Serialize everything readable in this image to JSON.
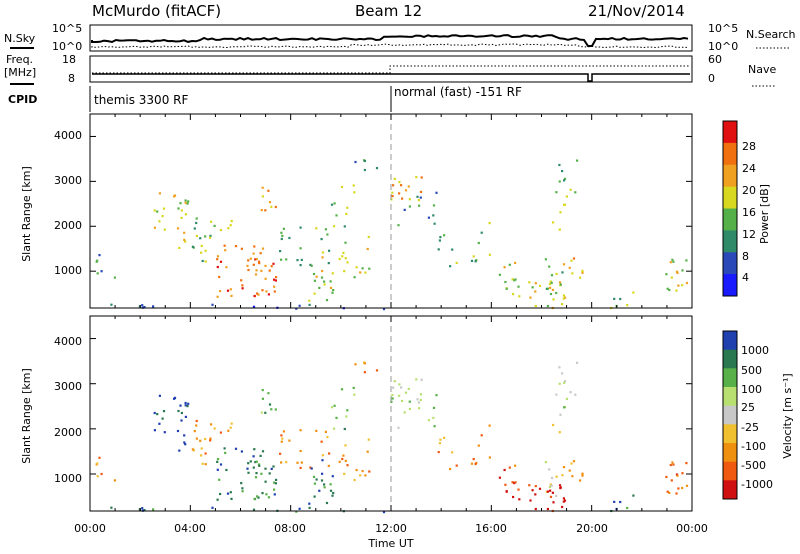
{
  "header": {
    "site": "McMurdo (fitACF)",
    "beam": "Beam 12",
    "date": "21/Nov/2014"
  },
  "left_labels": {
    "nsky": "N.Sky",
    "freq": "Freq.",
    "freq_unit": "[MHz]",
    "cpid": "CPID"
  },
  "right_labels": {
    "nsearch": "N.Search",
    "nave": "Nave"
  },
  "top_panel_ticks": {
    "noise_left": [
      "10^5",
      "10^0"
    ],
    "noise_right": [
      "10^5",
      "10^0"
    ],
    "freq_left": [
      "18",
      "8"
    ],
    "nave_right": [
      "60",
      "0"
    ]
  },
  "cpid_modes": [
    "themis 3300 RF",
    "normal (fast) -151 RF"
  ],
  "colors": {
    "power_scale": [
      "#1a1aff",
      "#2a48b8",
      "#2f8a6a",
      "#56b04a",
      "#d8d820",
      "#f0a020",
      "#f07010",
      "#e01010"
    ],
    "velocity_scale": [
      "#d01010",
      "#f05a10",
      "#f09010",
      "#f0c030",
      "#c8c8c8",
      "#b8e070",
      "#58b048",
      "#2a7850",
      "#2040b0"
    ]
  },
  "chart_data": [
    {
      "type": "heatmap",
      "panel": "power",
      "ylabel": "Slant Range [km]",
      "ylim": [
        180,
        4500
      ],
      "yticks": [
        "1000",
        "2000",
        "3000",
        "4000"
      ],
      "xlim": [
        "00:00",
        "24:00"
      ],
      "colorbar_label": "Power [dB]",
      "colorbar_ticks": [
        "4",
        "8",
        "12",
        "16",
        "20",
        "24",
        "28"
      ]
    },
    {
      "type": "heatmap",
      "panel": "velocity",
      "ylabel": "Slant Range [km]",
      "ylim": [
        180,
        4500
      ],
      "yticks": [
        "1000",
        "2000",
        "3000",
        "4000"
      ],
      "xlabel": "Time UT",
      "xticks": [
        "00:00",
        "04:00",
        "08:00",
        "12:00",
        "16:00",
        "20:00",
        "00:00"
      ],
      "colorbar_label": "Velocity [m s⁻¹]",
      "colorbar_ticks": [
        "1000",
        "500",
        "100",
        "25",
        "-25",
        "-100",
        "-500",
        "-1000"
      ]
    }
  ]
}
